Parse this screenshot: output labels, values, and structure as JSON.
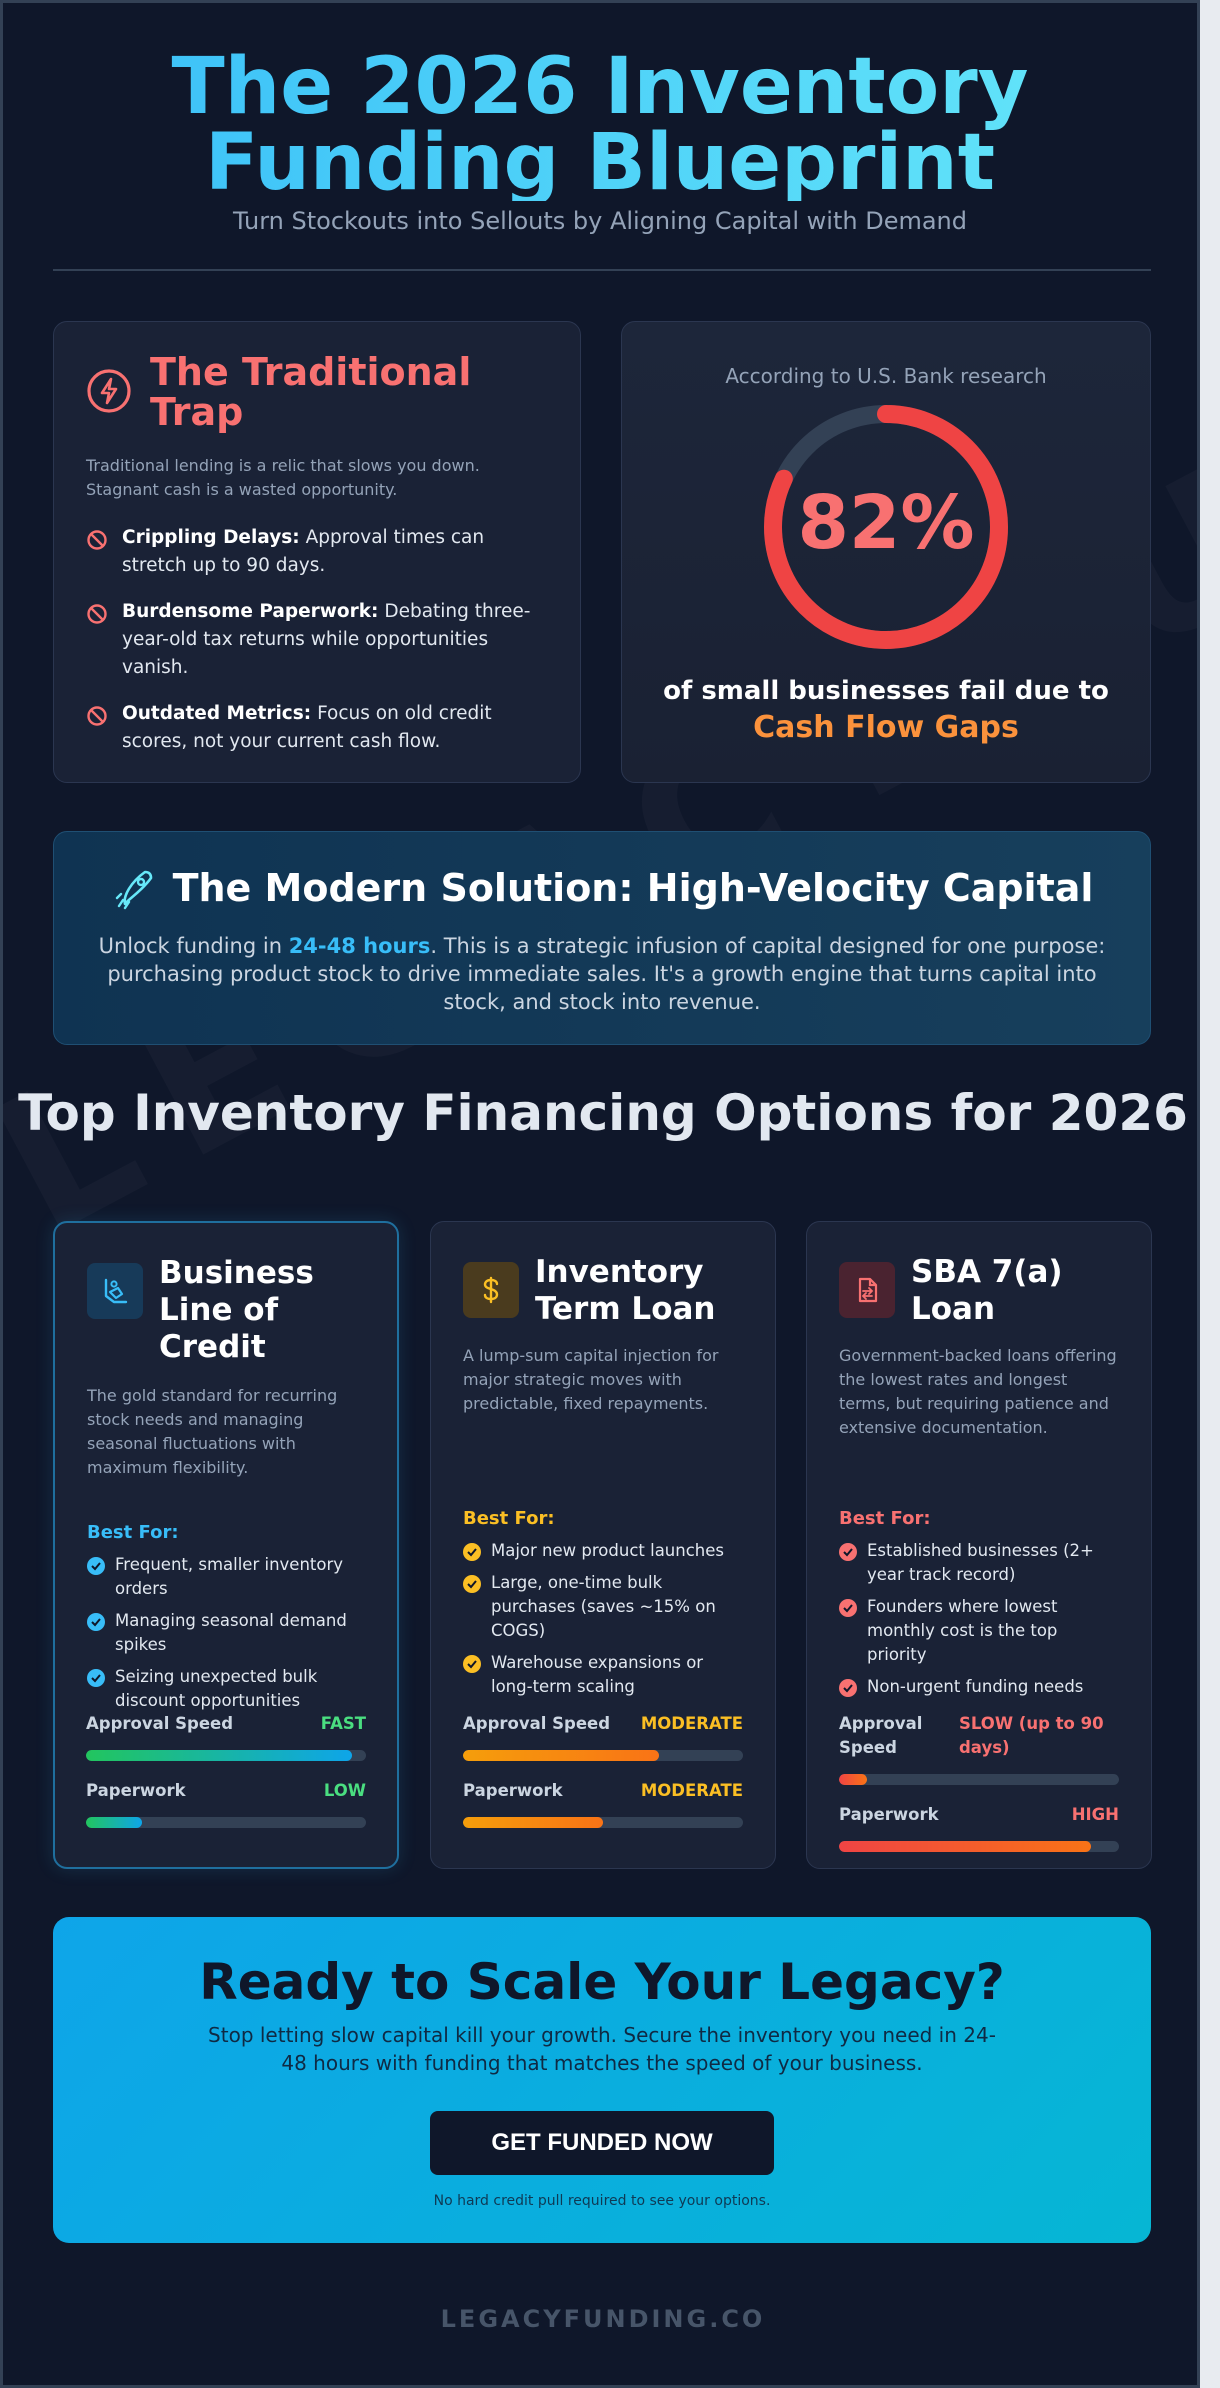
{
  "header": {
    "title_line1": "The 2026 Inventory",
    "title_line2": "Funding Blueprint",
    "subtitle": "Turn Stockouts into Sellouts by Aligning Capital with Demand"
  },
  "watermark": "LEGACYFUNDING.CO",
  "trap": {
    "title": "The Traditional Trap",
    "description": "Traditional lending is a relic that slows you down. Stagnant cash is a wasted opportunity.",
    "items": [
      {
        "bold": "Crippling Delays:",
        "text": " Approval times can stretch up to 90 days."
      },
      {
        "bold": "Burdensome Paperwork:",
        "text": " Debating three-year-old tax returns while opportunities vanish."
      },
      {
        "bold": "Outdated Metrics:",
        "text": " Focus on old credit scores, not your current cash flow."
      }
    ]
  },
  "stat": {
    "source": "According to U.S. Bank research",
    "value": "82%",
    "gauge_fraction": 0.82,
    "text": "of small businesses fail due to",
    "highlight": "Cash Flow Gaps"
  },
  "solution": {
    "title": "The Modern Solution: High-Velocity Capital",
    "body_pre": "Unlock funding in ",
    "body_highlight": "24-48 hours",
    "body_post": ". This is a strategic infusion of capital designed for one purpose: purchasing product stock to drive immediate sales. It's a growth engine that turns capital into stock, and stock into revenue."
  },
  "options_title": "Top Inventory Financing Options for 2026",
  "options": [
    {
      "title": "Business Line of Credit",
      "icon": "hand-coins-icon",
      "description": "The gold standard for recurring stock needs and managing seasonal fluctuations with maximum flexibility.",
      "best_for_label": "Best For:",
      "best_for": [
        "Frequent, smaller inventory orders",
        "Managing seasonal demand spikes",
        "Seizing unexpected bulk discount opportunities"
      ],
      "speed_label": "Approval Speed",
      "speed_value": "FAST",
      "speed_level": 0.95,
      "paperwork_label": "Paperwork",
      "paperwork_value": "LOW",
      "paperwork_level": 0.2,
      "accent": "#38bdf8"
    },
    {
      "title": "Inventory Term Loan",
      "icon": "dollar-sign-icon",
      "description": "A lump-sum capital injection for major strategic moves with predictable, fixed repayments.",
      "best_for_label": "Best For:",
      "best_for": [
        "Major new product launches",
        "Large, one-time bulk purchases (saves ~15% on COGS)",
        "Warehouse expansions or long-term scaling"
      ],
      "speed_label": "Approval Speed",
      "speed_value": "MODERATE",
      "speed_level": 0.7,
      "paperwork_label": "Paperwork",
      "paperwork_value": "MODERATE",
      "paperwork_level": 0.5,
      "accent": "#fbbf24"
    },
    {
      "title": "SBA 7(a) Loan",
      "icon": "file-transfer-icon",
      "description": "Government-backed loans offering the lowest rates and longest terms, but requiring patience and extensive documentation.",
      "best_for_label": "Best For:",
      "best_for": [
        "Established businesses (2+ year track record)",
        "Founders where lowest monthly cost is the top priority",
        "Non-urgent funding needs"
      ],
      "speed_label": "Approval Speed",
      "speed_value": "SLOW (up to 90 days)",
      "speed_level": 0.1,
      "paperwork_label": "Paperwork",
      "paperwork_value": "HIGH",
      "paperwork_level": 0.9,
      "accent": "#f87171"
    }
  ],
  "colors": {
    "fast": "#4ade80",
    "low": "#4ade80",
    "moderate": "#fbbf24",
    "slow": "#f87171",
    "high": "#f87171",
    "trap_red": "#f87171",
    "sky": "#38bdf8",
    "orange": "#fb923c"
  },
  "cta": {
    "title": "Ready to Scale Your Legacy?",
    "subtitle": "Stop letting slow capital kill your growth. Secure the inventory you need in 24-48 hours with funding that matches the speed of your business.",
    "button": "GET FUNDED NOW",
    "note": "No hard credit pull required to see your options."
  },
  "footer": "LEGACYFUNDING.CO"
}
